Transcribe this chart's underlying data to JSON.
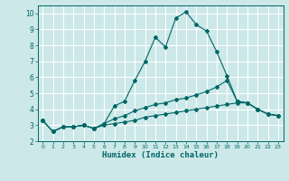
{
  "xlabel": "Humidex (Indice chaleur)",
  "bg_color": "#cce8e8",
  "grid_color": "#ffffff",
  "line_color": "#006666",
  "xlim": [
    -0.5,
    23.5
  ],
  "ylim": [
    2.0,
    10.5
  ],
  "xticks": [
    0,
    1,
    2,
    3,
    4,
    5,
    6,
    7,
    8,
    9,
    10,
    11,
    12,
    13,
    14,
    15,
    16,
    17,
    18,
    19,
    20,
    21,
    22,
    23
  ],
  "yticks": [
    2,
    3,
    4,
    5,
    6,
    7,
    8,
    9,
    10
  ],
  "line1_x": [
    0,
    1,
    2,
    3,
    4,
    5,
    6,
    7,
    8,
    9,
    10,
    11,
    12,
    13,
    14,
    15,
    16,
    17,
    18,
    19,
    20,
    21,
    22,
    23
  ],
  "line1_y": [
    3.3,
    2.6,
    2.9,
    2.9,
    3.0,
    2.8,
    3.1,
    4.2,
    4.5,
    5.8,
    7.0,
    8.5,
    7.9,
    9.7,
    10.1,
    9.3,
    8.9,
    7.6,
    6.1,
    4.5,
    4.4,
    4.0,
    3.7,
    3.6
  ],
  "line2_x": [
    0,
    1,
    2,
    3,
    4,
    5,
    6,
    7,
    8,
    9,
    10,
    11,
    12,
    13,
    14,
    15,
    16,
    17,
    18,
    19,
    20,
    21,
    22,
    23
  ],
  "line2_y": [
    3.3,
    2.6,
    2.9,
    2.9,
    3.0,
    2.8,
    3.1,
    3.4,
    3.6,
    3.9,
    4.1,
    4.3,
    4.4,
    4.6,
    4.7,
    4.9,
    5.1,
    5.4,
    5.8,
    4.5,
    4.4,
    4.0,
    3.7,
    3.6
  ],
  "line3_x": [
    0,
    1,
    2,
    3,
    4,
    5,
    6,
    7,
    8,
    9,
    10,
    11,
    12,
    13,
    14,
    15,
    16,
    17,
    18,
    19,
    20,
    21,
    22,
    23
  ],
  "line3_y": [
    3.3,
    2.6,
    2.9,
    2.9,
    3.0,
    2.8,
    3.0,
    3.1,
    3.2,
    3.3,
    3.5,
    3.6,
    3.7,
    3.8,
    3.9,
    4.0,
    4.1,
    4.2,
    4.3,
    4.4,
    4.4,
    4.0,
    3.7,
    3.6
  ]
}
